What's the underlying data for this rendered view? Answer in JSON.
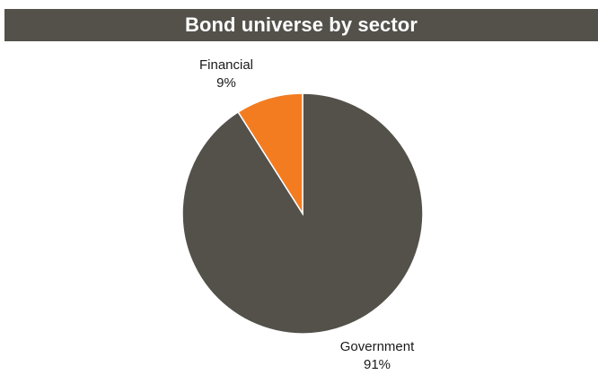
{
  "chart_data": {
    "type": "pie",
    "title": "Bond universe by sector",
    "slices": [
      {
        "label": "Government",
        "value_label": "91%",
        "value": 91,
        "color": "#53514a"
      },
      {
        "label": "Financial",
        "value_label": "9%",
        "value": 9,
        "color": "#f47c20"
      }
    ],
    "legend": "none",
    "title_bar_color": "#53514a"
  }
}
